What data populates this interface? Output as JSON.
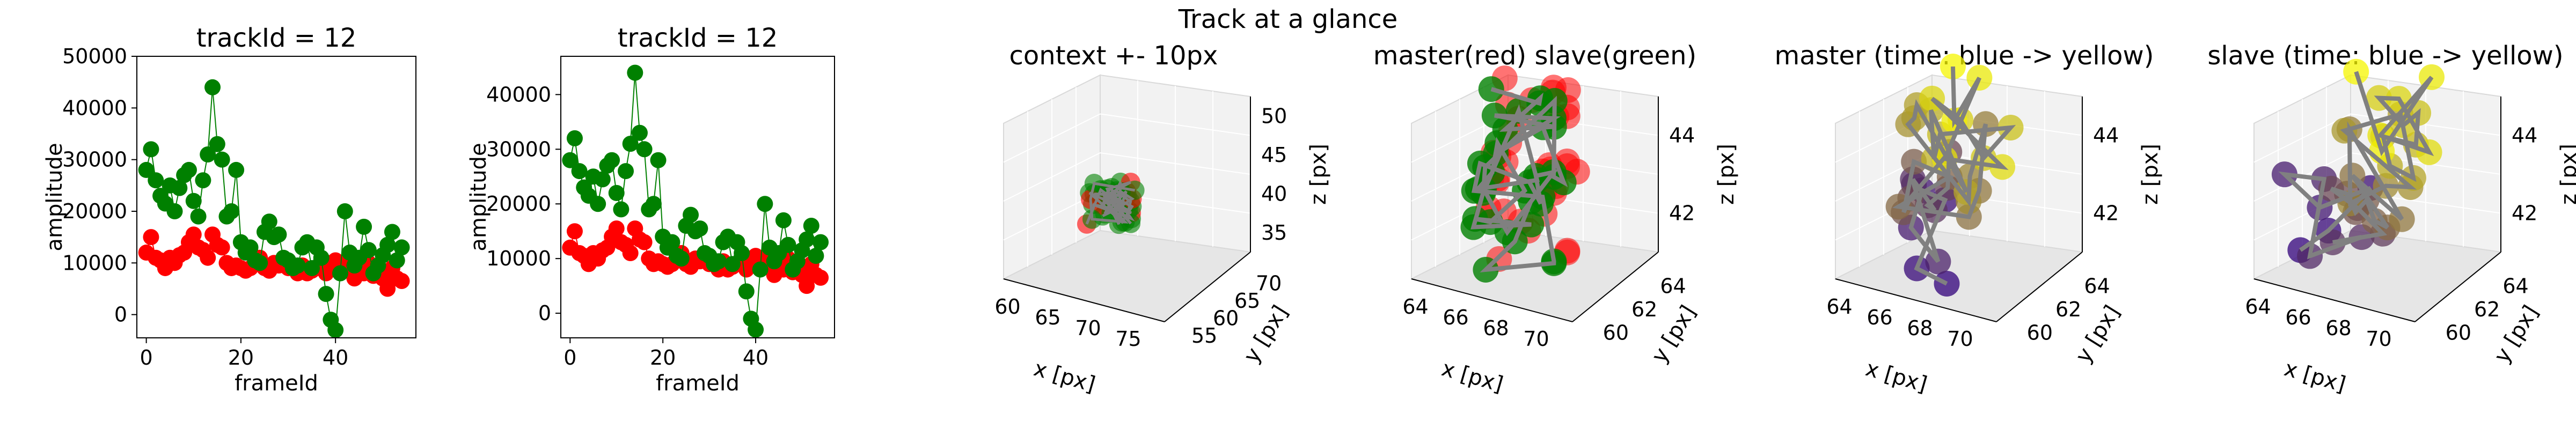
{
  "suptitle": "Track at a glance",
  "colors": {
    "master": "#ff0000",
    "slave": "#008000",
    "connector": "#808080"
  },
  "chart_data": [
    {
      "type": "scatter",
      "title": "trackId = 12",
      "xlabel": "frameId",
      "ylabel": "amplitude",
      "xlim": [
        -2,
        57
      ],
      "ylim": [
        -4500,
        50000
      ],
      "xticks": [
        0,
        20,
        40
      ],
      "yticks": [
        0,
        10000,
        20000,
        30000,
        40000,
        50000
      ],
      "series": [
        {
          "color": "#ff0000",
          "x": [
            0,
            1,
            2,
            3,
            4,
            5,
            6,
            7,
            8,
            9,
            10,
            11,
            12,
            13,
            14,
            15,
            16,
            17,
            18,
            19,
            20,
            21,
            22,
            23,
            24,
            25,
            26,
            27,
            28,
            29,
            30,
            31,
            32,
            33,
            34,
            35,
            36,
            37,
            38,
            39,
            40,
            41,
            42,
            43,
            44,
            45,
            46,
            47,
            48,
            49,
            50,
            51,
            52,
            53,
            54
          ],
          "y": [
            12000,
            15000,
            11000,
            10500,
            9000,
            11000,
            10000,
            11500,
            12000,
            14000,
            15500,
            13000,
            12500,
            11000,
            15500,
            13500,
            13000,
            10000,
            9000,
            9500,
            9000,
            8500,
            9000,
            10000,
            11000,
            9000,
            8500,
            10000,
            9500,
            10000,
            9000,
            9000,
            8000,
            9500,
            8000,
            8500,
            9000,
            9500,
            8000,
            10000,
            10500,
            10000,
            9500,
            8500,
            7000,
            9000,
            8000,
            10000,
            7500,
            8500,
            7000,
            5000,
            9000,
            7000,
            6500
          ]
        },
        {
          "color": "#008000",
          "x": [
            0,
            1,
            2,
            3,
            4,
            5,
            6,
            7,
            8,
            9,
            10,
            11,
            12,
            13,
            14,
            15,
            16,
            17,
            18,
            19,
            20,
            21,
            22,
            23,
            24,
            25,
            26,
            27,
            28,
            29,
            30,
            31,
            32,
            33,
            34,
            35,
            36,
            37,
            38,
            39,
            40,
            41,
            42,
            43,
            44,
            45,
            46,
            47,
            48,
            49,
            50,
            51,
            52,
            53,
            54
          ],
          "y": [
            28000,
            32000,
            26000,
            23000,
            21500,
            25000,
            20000,
            24500,
            27000,
            28000,
            22000,
            19000,
            26000,
            31000,
            44000,
            33000,
            30000,
            19000,
            20000,
            28000,
            14000,
            12000,
            13000,
            10500,
            10000,
            16000,
            18000,
            15000,
            15500,
            11000,
            10500,
            9000,
            9500,
            13000,
            14000,
            9000,
            13000,
            11000,
            4000,
            -1000,
            -3000,
            8000,
            20000,
            12000,
            9500,
            11000,
            17000,
            12500,
            8000,
            9500,
            11500,
            13500,
            16000,
            10500,
            13000
          ]
        }
      ]
    },
    {
      "type": "scatter",
      "title": "trackId = 12",
      "xlabel": "frameId",
      "ylabel": "amplitude",
      "xlim": [
        -2,
        57
      ],
      "ylim": [
        -4500,
        47000
      ],
      "xticks": [
        0,
        20,
        40
      ],
      "yticks": [
        0,
        10000,
        20000,
        30000,
        40000
      ],
      "series": [
        {
          "color": "#ff0000",
          "x": [
            0,
            1,
            2,
            3,
            4,
            5,
            6,
            7,
            8,
            9,
            10,
            11,
            12,
            13,
            14,
            15,
            16,
            17,
            18,
            19,
            20,
            21,
            22,
            23,
            24,
            25,
            26,
            27,
            28,
            29,
            30,
            31,
            32,
            33,
            34,
            35,
            36,
            37,
            38,
            39,
            40,
            41,
            42,
            43,
            44,
            45,
            46,
            47,
            48,
            49,
            50,
            51,
            52,
            53,
            54
          ],
          "y": [
            12000,
            15000,
            11000,
            10500,
            9000,
            11000,
            10000,
            11500,
            12000,
            14000,
            15500,
            13000,
            12500,
            11000,
            15500,
            13500,
            13000,
            10000,
            9000,
            9500,
            9000,
            8500,
            9000,
            10000,
            11000,
            9000,
            8500,
            10000,
            9500,
            10000,
            9000,
            9000,
            8000,
            9500,
            8000,
            8500,
            9000,
            9500,
            8000,
            10000,
            10500,
            10000,
            9500,
            8500,
            7000,
            9000,
            8000,
            10000,
            7500,
            8500,
            7000,
            5000,
            9000,
            7000,
            6500
          ]
        },
        {
          "color": "#008000",
          "x": [
            0,
            1,
            2,
            3,
            4,
            5,
            6,
            7,
            8,
            9,
            10,
            11,
            12,
            13,
            14,
            15,
            16,
            17,
            18,
            19,
            20,
            21,
            22,
            23,
            24,
            25,
            26,
            27,
            28,
            29,
            30,
            31,
            32,
            33,
            34,
            35,
            36,
            37,
            38,
            39,
            40,
            41,
            42,
            43,
            44,
            45,
            46,
            47,
            48,
            49,
            50,
            51,
            52,
            53,
            54
          ],
          "y": [
            28000,
            32000,
            26000,
            23000,
            21500,
            25000,
            20000,
            24500,
            27000,
            28000,
            22000,
            19000,
            26000,
            31000,
            44000,
            33000,
            30000,
            19000,
            20000,
            28000,
            14000,
            12000,
            13000,
            10500,
            10000,
            16000,
            18000,
            15000,
            15500,
            11000,
            10500,
            9000,
            9500,
            13000,
            14000,
            9000,
            13000,
            11000,
            4000,
            -1000,
            -3000,
            8000,
            20000,
            12000,
            9500,
            11000,
            17000,
            12500,
            8000,
            9500,
            11500,
            13500,
            16000,
            10500,
            13000
          ]
        }
      ]
    },
    {
      "type": "scatter3d",
      "title": "context +- 10px",
      "xlabel": "x [px]",
      "ylabel": "y [px]",
      "zlabel": "z [px]",
      "xticks": [
        "60",
        "65",
        "70",
        "75"
      ],
      "yticks": [
        "55",
        "60",
        "65",
        "70"
      ],
      "zticks": [
        "35",
        "40",
        "45",
        "50"
      ]
    },
    {
      "type": "scatter3d",
      "title": "master(red) slave(green)",
      "xlabel": "x [px]",
      "ylabel": "y [px]",
      "zlabel": "z [px]",
      "xticks": [
        "64",
        "66",
        "68",
        "70"
      ],
      "yticks": [
        "60",
        "62",
        "64"
      ],
      "zticks": [
        "42",
        "44"
      ]
    },
    {
      "type": "scatter3d",
      "title": "master (time: blue -> yellow)",
      "xlabel": "x [px]",
      "ylabel": "y [px]",
      "zlabel": "z [px]",
      "xticks": [
        "64",
        "66",
        "68",
        "70"
      ],
      "yticks": [
        "60",
        "62",
        "64"
      ],
      "zticks": [
        "42",
        "44"
      ]
    },
    {
      "type": "scatter3d",
      "title": "slave (time: blue -> yellow)",
      "xlabel": "x [px]",
      "ylabel": "y [px]",
      "zlabel": "z [px]",
      "xticks": [
        "64",
        "66",
        "68",
        "70"
      ],
      "yticks": [
        "60",
        "62",
        "64"
      ],
      "zticks": [
        "42",
        "44"
      ]
    }
  ]
}
